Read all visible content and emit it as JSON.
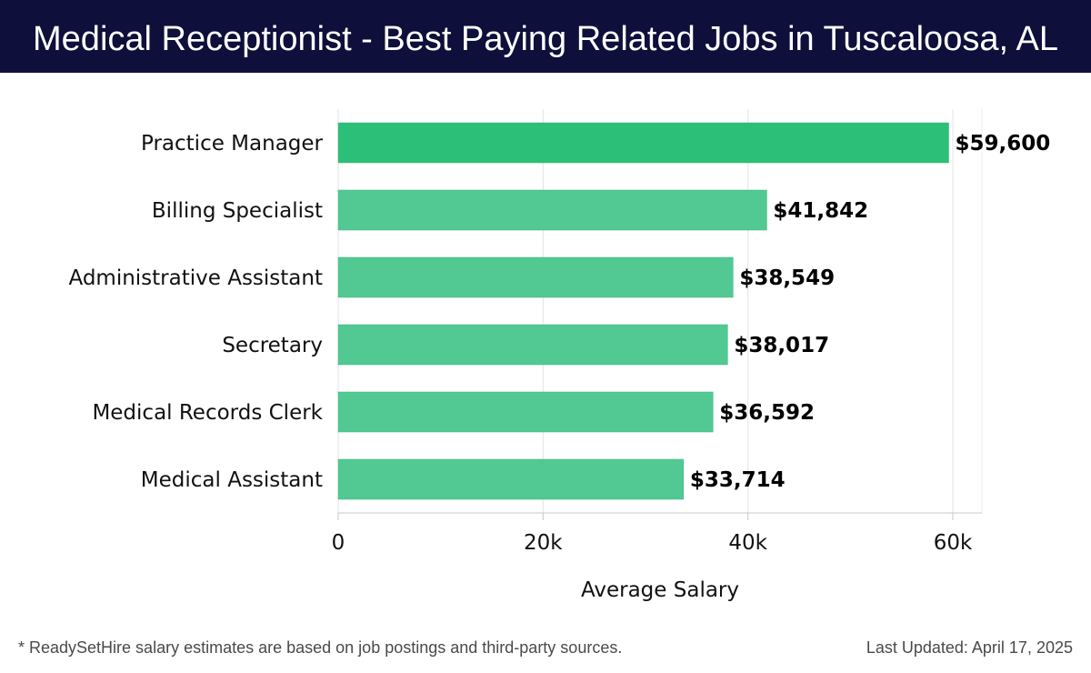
{
  "header": {
    "title": "Medical Receptionist - Best Paying Related Jobs in Tuscaloosa, AL"
  },
  "chart_data": {
    "type": "bar",
    "orientation": "horizontal",
    "categories": [
      "Practice Manager",
      "Billing Specialist",
      "Administrative Assistant",
      "Secretary",
      "Medical Records Clerk",
      "Medical Assistant"
    ],
    "values": [
      59600,
      41842,
      38549,
      38017,
      36592,
      33714
    ],
    "value_labels": [
      "$59,600",
      "$41,842",
      "$38,549",
      "$38,017",
      "$36,592",
      "$33,714"
    ],
    "xlabel": "Average Salary",
    "ylabel": "",
    "xlim": [
      0,
      63000
    ],
    "xticks": [
      0,
      20000,
      40000,
      60000
    ],
    "xtick_labels": [
      "0",
      "20k",
      "40k",
      "60k"
    ],
    "grid": true,
    "colors": {
      "top_bar": "#2bbf78",
      "bar": "#52c992"
    }
  },
  "footer": {
    "note": "* ReadySetHire salary estimates are based on job postings and third-party sources.",
    "updated": "Last Updated: April 17, 2025"
  }
}
